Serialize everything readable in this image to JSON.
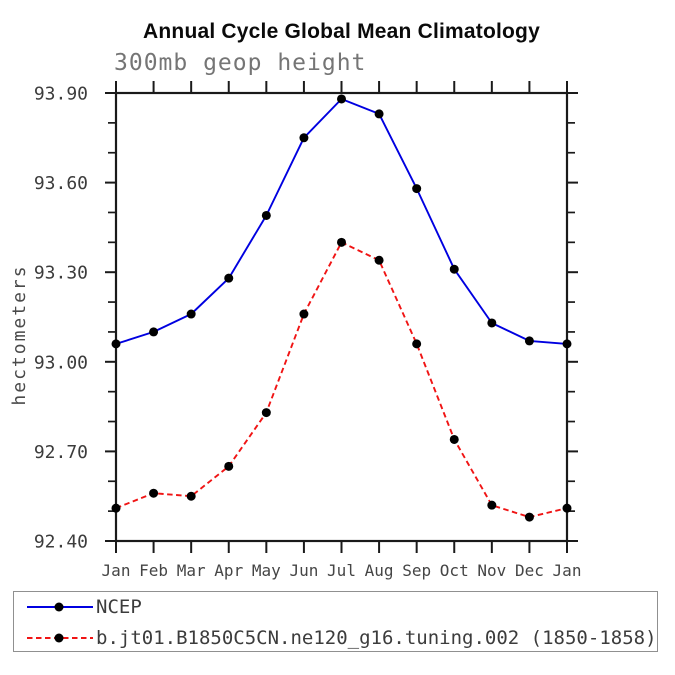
{
  "chart_data": {
    "type": "line",
    "title": "Annual Cycle Global Mean Climatology",
    "subtitle": "300mb geop height",
    "ylabel": "hectometers",
    "xlabel": "",
    "categories": [
      "Jan",
      "Feb",
      "Mar",
      "Apr",
      "May",
      "Jun",
      "Jul",
      "Aug",
      "Sep",
      "Oct",
      "Nov",
      "Dec",
      "Jan"
    ],
    "ylim": [
      92.4,
      93.9
    ],
    "ytick_step": 0.3,
    "yminor_step": 0.1,
    "ytick_labels": [
      "92.40",
      "92.70",
      "93.00",
      "93.30",
      "93.60",
      "93.90"
    ],
    "grid": false,
    "legend_position": "bottom-left",
    "axis_color": "#1a1a1a",
    "tick_label_color": "#3c3c3c",
    "series": [
      {
        "name": "NCEP",
        "color": "#0000e0",
        "line_style": "solid",
        "marker": "circle",
        "marker_color": "#000000",
        "values": [
          93.06,
          93.1,
          93.16,
          93.28,
          93.49,
          93.75,
          93.88,
          93.83,
          93.58,
          93.31,
          93.13,
          93.07,
          93.06
        ]
      },
      {
        "name": "b.jt01.B1850C5CN.ne120_g16.tuning.002 (1850-1858)",
        "color": "#f01414",
        "line_style": "dashed",
        "marker": "circle",
        "marker_color": "#000000",
        "values": [
          92.51,
          92.56,
          92.55,
          92.65,
          92.83,
          93.16,
          93.4,
          93.34,
          93.06,
          92.74,
          92.52,
          92.48,
          92.51
        ]
      }
    ]
  }
}
